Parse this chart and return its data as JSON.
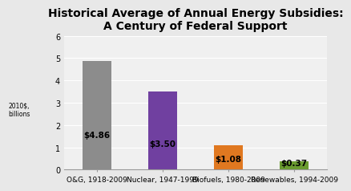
{
  "title": "Historical Average of Annual Energy Subsidies:\nA Century of Federal Support",
  "categories": [
    "O&G, 1918-2009",
    "Nuclear, 1947-1999",
    "Biofuels, 1980-2009",
    "Renewables, 1994-2009"
  ],
  "values": [
    4.86,
    3.5,
    1.08,
    0.37
  ],
  "labels": [
    "$4.86",
    "$3.50",
    "$1.08",
    "$0.37"
  ],
  "bar_colors": [
    "#8C8C8C",
    "#7040A0",
    "#E07820",
    "#6A9B30"
  ],
  "fig_background": "#E8E8E8",
  "plot_background": "#F0F0F0",
  "ylabel": "2010$,\nbillions",
  "ylim": [
    0,
    6
  ],
  "yticks": [
    0,
    1,
    2,
    3,
    4,
    5,
    6
  ],
  "title_fontsize": 10,
  "label_fontsize": 7.5,
  "ylabel_fontsize": 5.5,
  "xtick_fontsize": 6.5,
  "ytick_fontsize": 7
}
